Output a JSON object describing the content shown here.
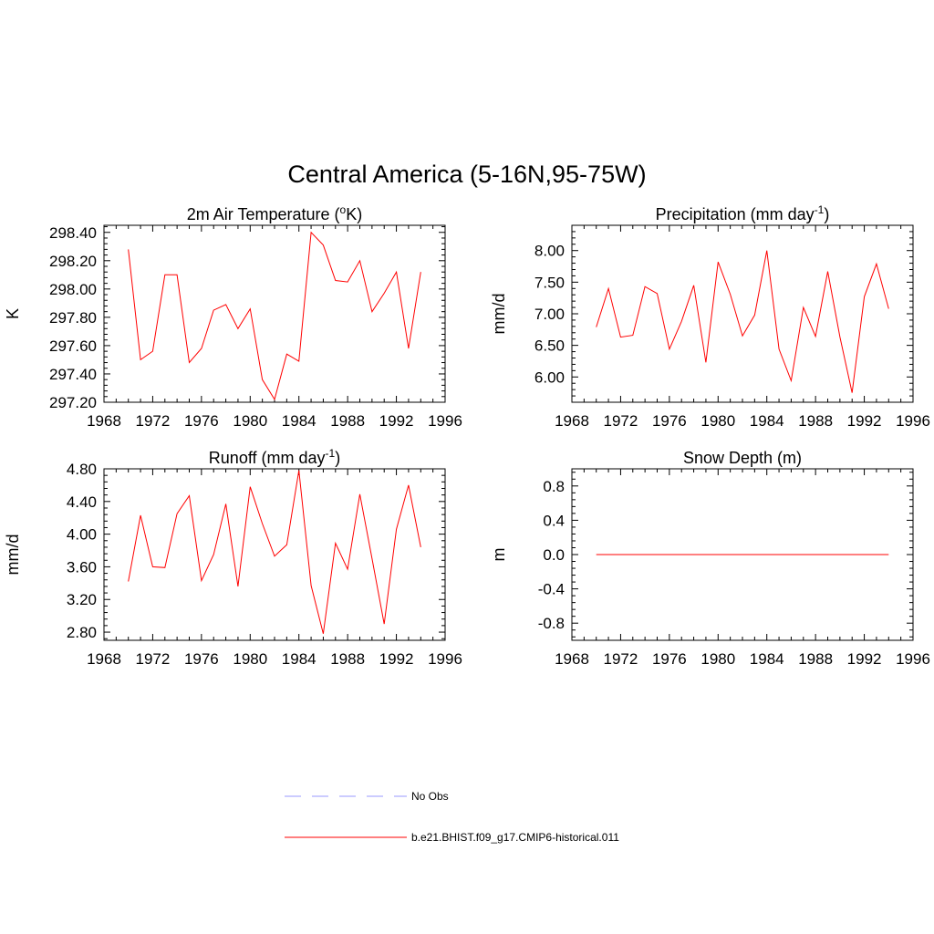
{
  "title": "Central America (5-16N,95-75W)",
  "colors": {
    "model": "#ff0000",
    "obs": "#9999ff",
    "axis": "#000000"
  },
  "legend": {
    "items": [
      {
        "label": "No Obs",
        "style": "dashed",
        "color": "#9999ff"
      },
      {
        "label": "b.e21.BHIST.f09_g17.CMIP6-historical.011",
        "style": "solid",
        "color": "#ff0000"
      }
    ]
  },
  "chart_data": [
    {
      "type": "line",
      "title": "2m Air Temperature (",
      "title_sup": "o",
      "title_suffix": "K)",
      "xlabel": "",
      "ylabel": "K",
      "xlim": [
        1968,
        1996
      ],
      "ylim": [
        297.2,
        298.45
      ],
      "xticks": [
        1968,
        1972,
        1976,
        1980,
        1984,
        1988,
        1992,
        1996
      ],
      "yticks": [
        297.2,
        297.4,
        297.6,
        297.8,
        298.0,
        298.2,
        298.4
      ],
      "ytick_labels": [
        "297.20",
        "297.40",
        "297.60",
        "297.80",
        "298.00",
        "298.20",
        "298.40"
      ],
      "x": [
        1970,
        1971,
        1972,
        1973,
        1974,
        1975,
        1976,
        1977,
        1978,
        1979,
        1980,
        1981,
        1982,
        1983,
        1984,
        1985,
        1986,
        1987,
        1988,
        1989,
        1990,
        1991,
        1992,
        1993,
        1994
      ],
      "series": [
        {
          "values": [
            298.28,
            297.5,
            297.56,
            298.1,
            298.1,
            297.48,
            297.58,
            297.85,
            297.89,
            297.72,
            297.86,
            297.36,
            297.22,
            297.54,
            297.49,
            298.4,
            298.31,
            298.06,
            298.05,
            298.2,
            297.84,
            297.97,
            298.12,
            297.58,
            298.12
          ]
        }
      ]
    },
    {
      "type": "line",
      "title": "Precipitation (mm day",
      "title_sup": "-1",
      "title_suffix": ")",
      "xlabel": "",
      "ylabel": "mm/d",
      "xlim": [
        1968,
        1996
      ],
      "ylim": [
        5.6,
        8.4
      ],
      "xticks": [
        1968,
        1972,
        1976,
        1980,
        1984,
        1988,
        1992,
        1996
      ],
      "yticks": [
        6.0,
        6.5,
        7.0,
        7.5,
        8.0
      ],
      "ytick_labels": [
        "6.00",
        "6.50",
        "7.00",
        "7.50",
        "8.00"
      ],
      "x": [
        1970,
        1971,
        1972,
        1973,
        1974,
        1975,
        1976,
        1977,
        1978,
        1979,
        1980,
        1981,
        1982,
        1983,
        1984,
        1985,
        1986,
        1987,
        1988,
        1989,
        1990,
        1991,
        1992,
        1993,
        1994
      ],
      "series": [
        {
          "values": [
            6.79,
            7.4,
            6.63,
            6.66,
            7.43,
            7.32,
            6.44,
            6.88,
            7.45,
            6.23,
            7.82,
            7.31,
            6.65,
            6.98,
            8.0,
            6.44,
            5.94,
            7.1,
            6.64,
            7.67,
            6.63,
            5.75,
            7.27,
            7.79,
            7.08
          ]
        }
      ]
    },
    {
      "type": "line",
      "title": "Runoff (mm day",
      "title_sup": "-1",
      "title_suffix": ")",
      "xlabel": "",
      "ylabel": "mm/d",
      "xlim": [
        1968,
        1996
      ],
      "ylim": [
        2.7,
        4.8
      ],
      "xticks": [
        1968,
        1972,
        1976,
        1980,
        1984,
        1988,
        1992,
        1996
      ],
      "yticks": [
        2.8,
        3.2,
        3.6,
        4.0,
        4.4,
        4.8
      ],
      "ytick_labels": [
        "2.80",
        "3.20",
        "3.60",
        "4.00",
        "4.40",
        "4.80"
      ],
      "x": [
        1970,
        1971,
        1972,
        1973,
        1974,
        1975,
        1976,
        1977,
        1978,
        1979,
        1980,
        1981,
        1982,
        1983,
        1984,
        1985,
        1986,
        1987,
        1988,
        1989,
        1990,
        1991,
        1992,
        1993,
        1994
      ],
      "series": [
        {
          "values": [
            3.42,
            4.23,
            3.6,
            3.59,
            4.25,
            4.47,
            3.43,
            3.75,
            4.37,
            3.36,
            4.58,
            4.13,
            3.73,
            3.87,
            4.78,
            3.37,
            2.78,
            3.89,
            3.57,
            4.49,
            3.7,
            2.9,
            4.06,
            4.6,
            3.84
          ]
        }
      ]
    },
    {
      "type": "line",
      "title": "Snow Depth (m)",
      "title_sup": "",
      "title_suffix": "",
      "xlabel": "",
      "ylabel": "m",
      "xlim": [
        1968,
        1996
      ],
      "ylim": [
        -1.0,
        1.0
      ],
      "xticks": [
        1968,
        1972,
        1976,
        1980,
        1984,
        1988,
        1992,
        1996
      ],
      "yticks": [
        -0.8,
        -0.4,
        0.0,
        0.4,
        0.8
      ],
      "ytick_labels": [
        "-0.8",
        "-0.4",
        "0.0",
        "0.4",
        "0.8"
      ],
      "x": [
        1970,
        1994
      ],
      "series": [
        {
          "values": [
            0.0,
            0.0
          ]
        }
      ]
    }
  ]
}
